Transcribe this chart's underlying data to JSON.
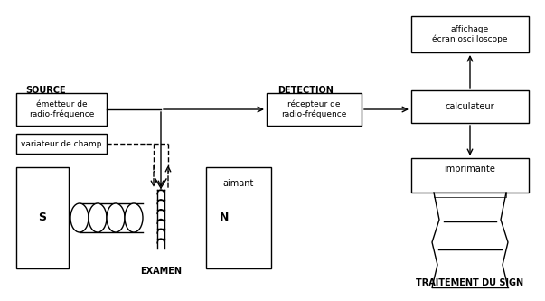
{
  "bg_color": "#ffffff",
  "line_color": "#000000",
  "source_label": "SOURCE",
  "detection_label": "DETECTION",
  "examen_label": "EXAMEN",
  "traitement_label": "TRAITEMENT DU SIGN",
  "emetteur_label": "émetteur de\nradio-fréquence",
  "variateur_label": "variateur de champ",
  "recepteur_label": "récepteur de\nradio-fréquence",
  "calculateur_label": "calculateur",
  "affichage_label": "affichage\nécran oscilloscope",
  "imprimante_label": "imprimante",
  "aimant_label": "aimant",
  "S_label": "S",
  "N_label": "N"
}
